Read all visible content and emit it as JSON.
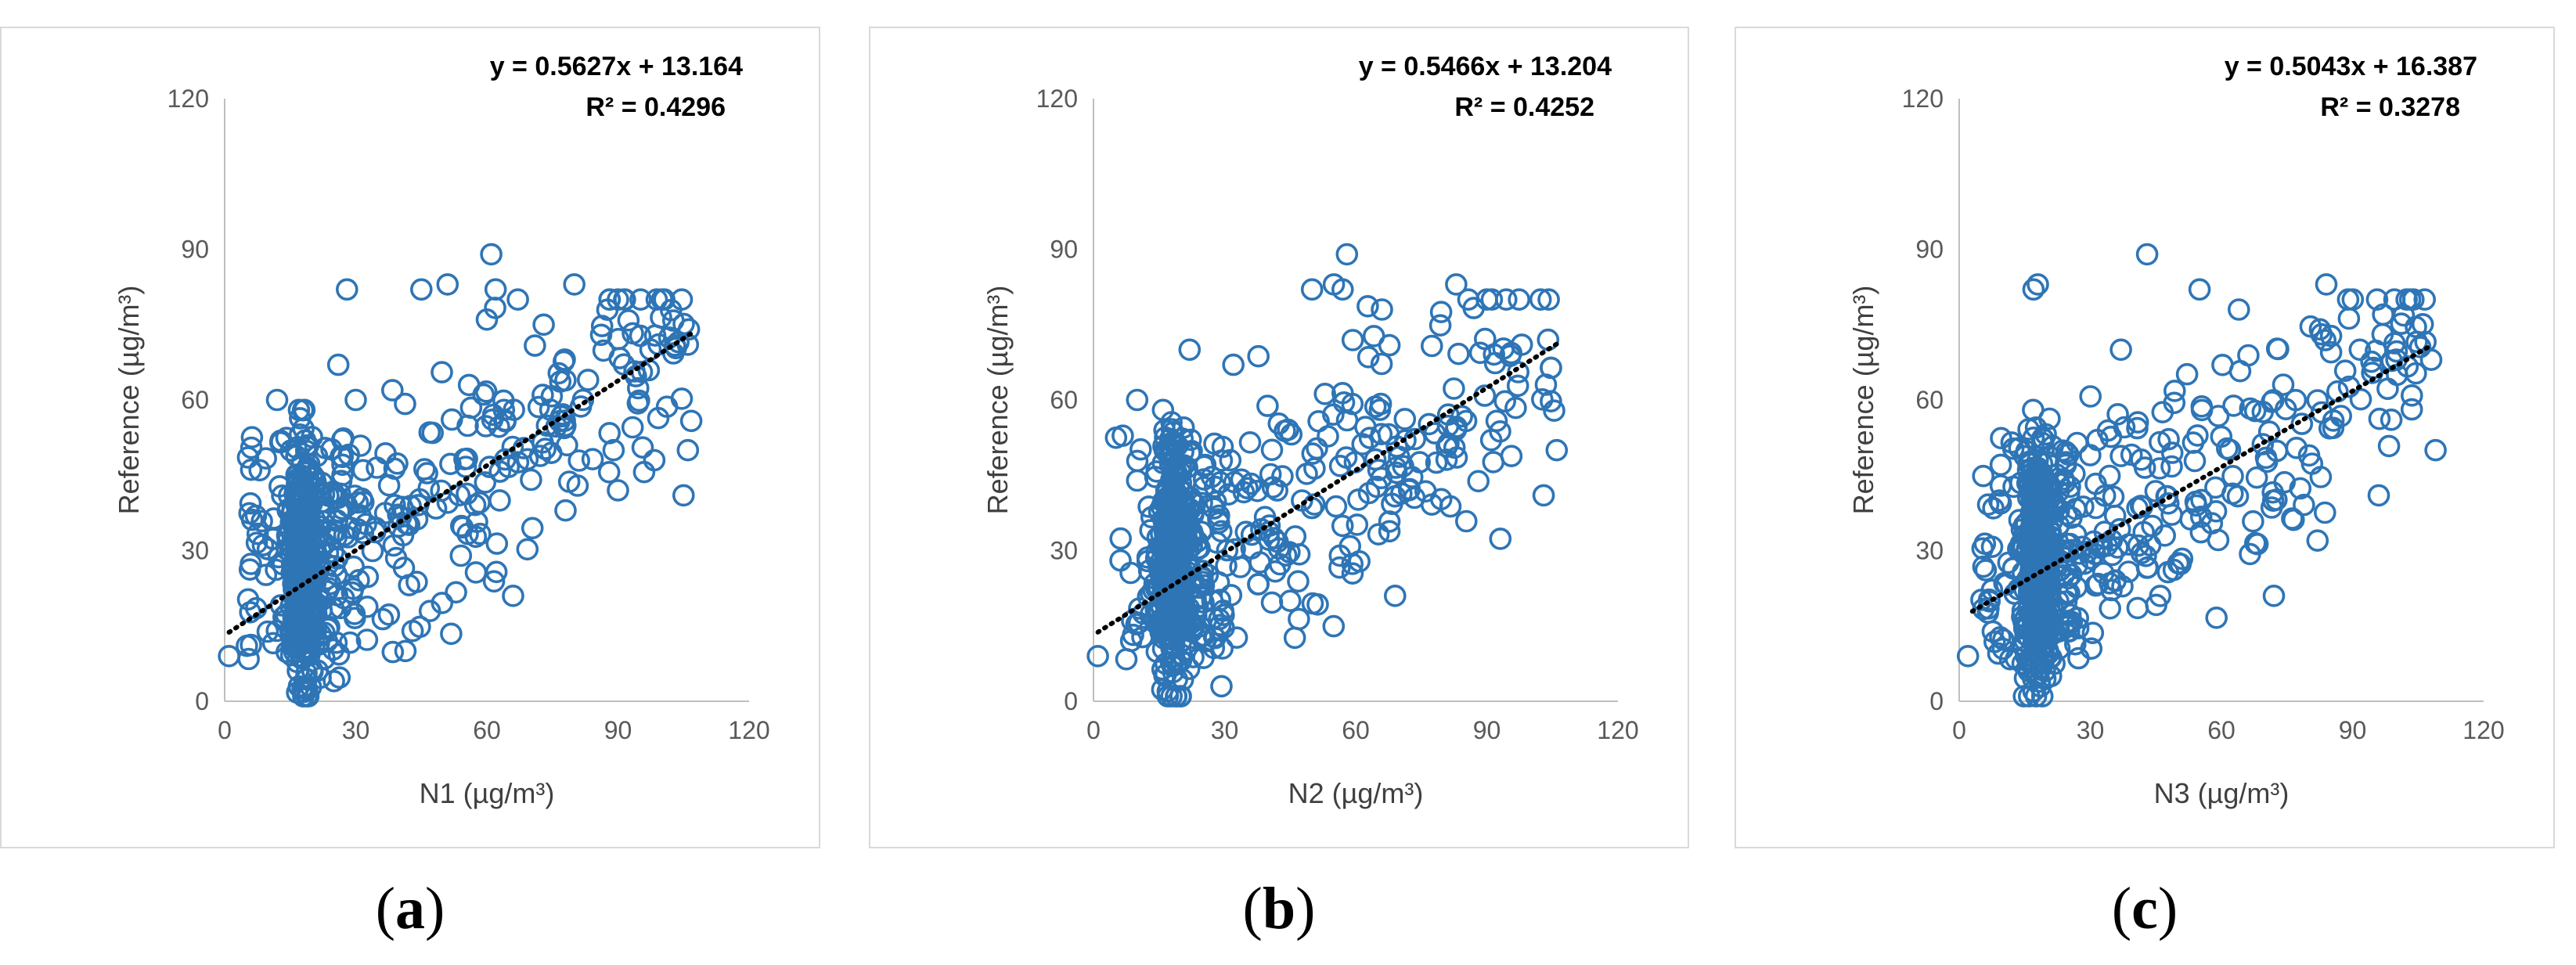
{
  "colors": {
    "marker": "#2e75b6",
    "trend": "#000000",
    "tick": "#595959",
    "axis": "#bfbfbf"
  },
  "chart_data": [
    {
      "type": "scatter",
      "panel": "(a)",
      "caption_letter": "a",
      "xlabel": "N1 (µg/m³)",
      "ylabel": "Reference (µg/m³)",
      "xlim": [
        0,
        120
      ],
      "ylim": [
        0,
        120
      ],
      "xticks": [
        "0",
        "30",
        "60",
        "90",
        "120"
      ],
      "yticks": [
        "0",
        "30",
        "60",
        "90",
        "120"
      ],
      "equation": "y = 0.5627x + 13.164",
      "r2": "R² = 0.4296",
      "trend": {
        "slope": 0.5627,
        "intercept": 13.164,
        "x_range": [
          1,
          107
        ]
      },
      "seed": 11,
      "x_max": 107,
      "points": [
        [
          1,
          9
        ],
        [
          28,
          82
        ],
        [
          45,
          82
        ],
        [
          61,
          89
        ],
        [
          62,
          82
        ],
        [
          80,
          83
        ],
        [
          90,
          80
        ],
        [
          106,
          71
        ],
        [
          106,
          50
        ],
        [
          105,
          41
        ],
        [
          90,
          42
        ],
        [
          89,
          50
        ],
        [
          78,
          38
        ],
        [
          66,
          21
        ],
        [
          43,
          14
        ],
        [
          25,
          4
        ],
        [
          18,
          1
        ],
        [
          18,
          2
        ],
        [
          8,
          46
        ],
        [
          12,
          60
        ],
        [
          26,
          67
        ],
        [
          30,
          60
        ],
        [
          60,
          76
        ],
        [
          51,
          83
        ],
        [
          73,
          75
        ],
        [
          82,
          60
        ]
      ]
    },
    {
      "type": "scatter",
      "panel": "(b)",
      "caption_letter": "b",
      "xlabel": "N2 (µg/m³)",
      "ylabel": "Reference (µg/m³)",
      "xlim": [
        0,
        120
      ],
      "ylim": [
        0,
        120
      ],
      "xticks": [
        "0",
        "30",
        "60",
        "90",
        "120"
      ],
      "yticks": [
        "0",
        "30",
        "60",
        "90",
        "120"
      ],
      "equation": "y = 0.5466x + 13.204",
      "r2": "R² = 0.4252",
      "trend": {
        "slope": 0.5466,
        "intercept": 13.204,
        "x_range": [
          1,
          106
        ]
      },
      "seed": 23,
      "x_max": 106,
      "points": [
        [
          1,
          9
        ],
        [
          50,
          82
        ],
        [
          55,
          83
        ],
        [
          58,
          89
        ],
        [
          57,
          82
        ],
        [
          83,
          83
        ],
        [
          90,
          80
        ],
        [
          98,
          71
        ],
        [
          106,
          50
        ],
        [
          103,
          41
        ],
        [
          91,
          52
        ],
        [
          22,
          70
        ],
        [
          10,
          60
        ],
        [
          32,
          67
        ],
        [
          69,
          21
        ],
        [
          17,
          1
        ],
        [
          17,
          2
        ],
        [
          45,
          20
        ],
        [
          66,
          78
        ]
      ]
    },
    {
      "type": "scatter",
      "panel": "(c)",
      "caption_letter": "c",
      "xlabel": "N3 (µg/m³)",
      "ylabel": "Reference (µg/m³)",
      "xlim": [
        0,
        120
      ],
      "ylim": [
        0,
        120
      ],
      "xticks": [
        "0",
        "30",
        "60",
        "90",
        "120"
      ],
      "yticks": [
        "0",
        "30",
        "60",
        "90",
        "120"
      ],
      "equation": "y = 0.5043x + 16.387",
      "r2": "R² = 0.3278",
      "trend": {
        "slope": 0.5043,
        "intercept": 16.387,
        "x_range": [
          3,
          108
        ]
      },
      "seed": 37,
      "x_max": 108,
      "points": [
        [
          2,
          9
        ],
        [
          17,
          82
        ],
        [
          18,
          83
        ],
        [
          43,
          89
        ],
        [
          55,
          82
        ],
        [
          84,
          83
        ],
        [
          89,
          80
        ],
        [
          97,
          77
        ],
        [
          108,
          68
        ],
        [
          109,
          50
        ],
        [
          96,
          41
        ],
        [
          82,
          32
        ],
        [
          72,
          21
        ],
        [
          37,
          70
        ],
        [
          16,
          1
        ],
        [
          17,
          2
        ],
        [
          21,
          5
        ],
        [
          64,
          78
        ]
      ]
    }
  ]
}
